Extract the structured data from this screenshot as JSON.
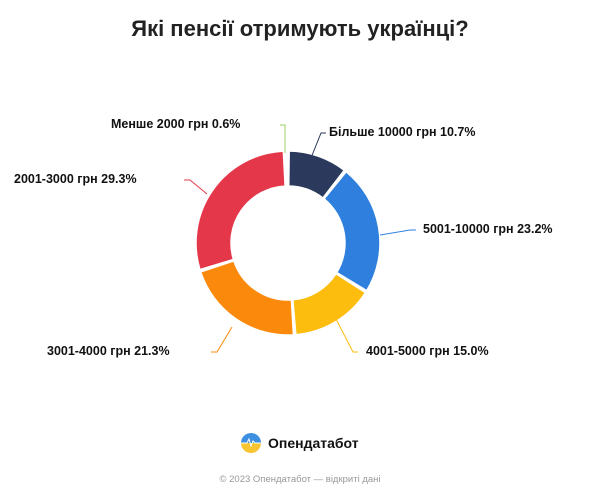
{
  "title": "Які пенсії отримують українці?",
  "chart_data": {
    "type": "pie",
    "donut": true,
    "title": "Які пенсії отримують українці?",
    "categories": [
      "Більше 10000 грн",
      "5001-10000 грн",
      "4001-5000 грн",
      "3001-4000 грн",
      "2001-3000 грн",
      "Менше 2000 грн"
    ],
    "values": [
      10.7,
      23.2,
      15.0,
      21.3,
      29.3,
      0.6
    ],
    "unit": "%",
    "colors": [
      "#2b3a5c",
      "#2f80de",
      "#fdbd0e",
      "#fb8a0c",
      "#e5374a",
      "#9ccc65"
    ]
  },
  "labels": [
    {
      "text": "Більше 10000 грн 10.7%"
    },
    {
      "text": "5001-10000 грн 23.2%"
    },
    {
      "text": "4001-5000 грн 15.0%"
    },
    {
      "text": "3001-4000 грн 21.3%"
    },
    {
      "text": "2001-3000 грн 29.3%"
    },
    {
      "text": "Менше 2000 грн 0.6%"
    }
  ],
  "brand": {
    "name": "Опендатабот"
  },
  "footer": "© 2023 Опендатабот — відкриті дані"
}
